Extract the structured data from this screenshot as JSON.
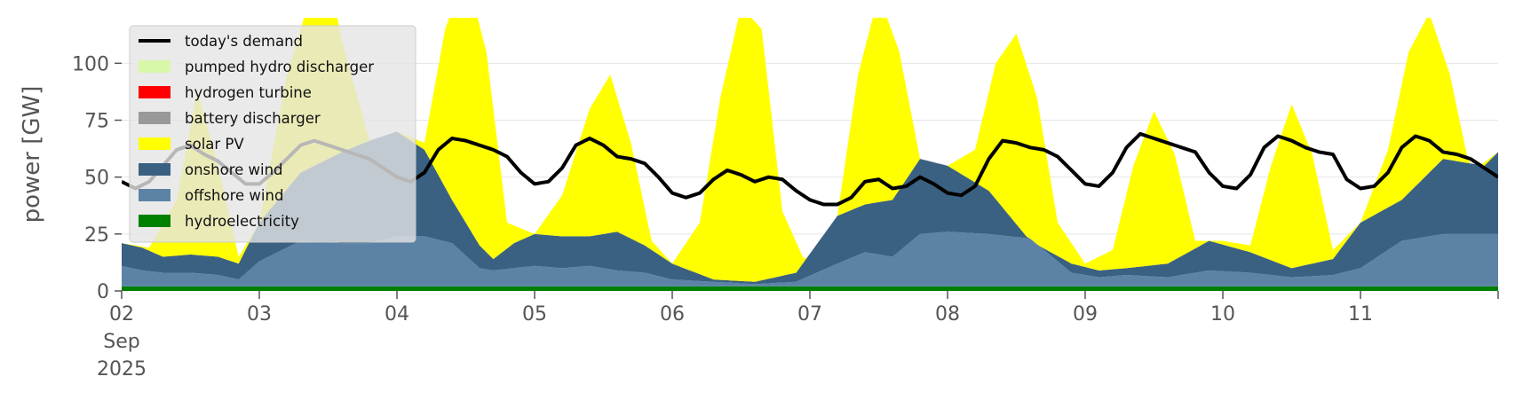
{
  "chart_data": {
    "type": "area",
    "stacked": true,
    "ylabel": "power [GW]",
    "ylim": [
      0,
      120
    ],
    "y_ticks": [
      0,
      25,
      50,
      75,
      100
    ],
    "x_range_days": [
      "2025-09-02",
      "2025-09-12"
    ],
    "x_tick_labels": [
      {
        "day": 2,
        "lines": [
          "02",
          "Sep",
          "2025"
        ]
      },
      {
        "day": 3,
        "lines": [
          "03"
        ]
      },
      {
        "day": 4,
        "lines": [
          "04"
        ]
      },
      {
        "day": 5,
        "lines": [
          "05"
        ]
      },
      {
        "day": 6,
        "lines": [
          "06"
        ]
      },
      {
        "day": 7,
        "lines": [
          "07"
        ]
      },
      {
        "day": 8,
        "lines": [
          "08"
        ]
      },
      {
        "day": 9,
        "lines": [
          "09"
        ]
      },
      {
        "day": 10,
        "lines": [
          "10"
        ]
      },
      {
        "day": 11,
        "lines": [
          "11"
        ]
      }
    ],
    "grid": true,
    "legend_position": "top-left",
    "legend": [
      {
        "label": "today's demand",
        "color": "#000000",
        "kind": "line"
      },
      {
        "label": "pumped hydro discharger",
        "color": "#d9f7a8",
        "kind": "area"
      },
      {
        "label": "hydrogen turbine",
        "color": "#ff0000",
        "kind": "area"
      },
      {
        "label": "battery discharger",
        "color": "#999999",
        "kind": "area"
      },
      {
        "label": "solar PV",
        "color": "#ffff00",
        "kind": "area"
      },
      {
        "label": "onshore wind",
        "color": "#3b6182",
        "kind": "area"
      },
      {
        "label": "offshore wind",
        "color": "#5c83a6",
        "kind": "area"
      },
      {
        "label": "hydroelectricity",
        "color": "#008000",
        "kind": "area"
      }
    ],
    "stack_order_bottom_to_top": [
      "hydroelectricity",
      "offshore wind",
      "onshore wind",
      "solar PV",
      "battery discharger",
      "hydrogen turbine",
      "pumped hydro discharger"
    ],
    "series": [
      {
        "name": "hydroelectricity",
        "x": [
          2,
          12
        ],
        "values": [
          2,
          2
        ]
      },
      {
        "name": "offshore wind",
        "x": [
          2.0,
          2.15,
          2.3,
          2.5,
          2.7,
          2.85,
          3.0,
          3.3,
          3.6,
          3.8,
          4.0,
          4.2,
          4.4,
          4.6,
          4.7,
          4.85,
          5.0,
          5.2,
          5.4,
          5.6,
          5.8,
          6.0,
          6.3,
          6.6,
          6.9,
          7.2,
          7.4,
          7.6,
          7.8,
          8.0,
          8.3,
          8.6,
          8.9,
          9.1,
          9.3,
          9.6,
          9.9,
          10.2,
          10.5,
          10.8,
          11.0,
          11.3,
          11.6,
          11.9,
          12.0
        ],
        "values": [
          11,
          9,
          8,
          8,
          7,
          5,
          13,
          22,
          21,
          21,
          24,
          24,
          21,
          10,
          9,
          10,
          11,
          10,
          11,
          9,
          8,
          5,
          4,
          3,
          4,
          12,
          17,
          15,
          25,
          26,
          25,
          23,
          8,
          6,
          7,
          6,
          9,
          8,
          6,
          7,
          10,
          22,
          25,
          25,
          25
        ]
      },
      {
        "name": "onshore wind",
        "x": [
          2.0,
          2.15,
          2.3,
          2.5,
          2.7,
          2.85,
          3.0,
          3.3,
          3.6,
          3.8,
          4.0,
          4.2,
          4.4,
          4.6,
          4.7,
          4.85,
          5.0,
          5.2,
          5.4,
          5.6,
          5.8,
          6.0,
          6.3,
          6.6,
          6.9,
          7.2,
          7.4,
          7.6,
          7.8,
          8.0,
          8.3,
          8.6,
          8.9,
          9.1,
          9.3,
          9.6,
          9.9,
          10.2,
          10.5,
          10.8,
          11.0,
          11.3,
          11.6,
          11.9,
          12.0
        ],
        "values": [
          21,
          19,
          15,
          16,
          15,
          12,
          30,
          52,
          61,
          66,
          70,
          62,
          40,
          20,
          14,
          21,
          25,
          24,
          24,
          26,
          20,
          12,
          5,
          4,
          8,
          33,
          38,
          40,
          58,
          55,
          44,
          22,
          12,
          9,
          10,
          12,
          22,
          17,
          10,
          14,
          30,
          40,
          58,
          55,
          61
        ]
      },
      {
        "name": "solar PV",
        "x": [
          2.0,
          2.2,
          2.4,
          2.55,
          2.7,
          2.85,
          3.0,
          3.2,
          3.4,
          3.5,
          3.6,
          3.8,
          4.0,
          4.2,
          4.35,
          4.5,
          4.65,
          4.8,
          5.0,
          5.2,
          5.4,
          5.55,
          5.7,
          5.85,
          6.0,
          6.2,
          6.35,
          6.5,
          6.65,
          6.8,
          7.0,
          7.2,
          7.35,
          7.5,
          7.65,
          7.8,
          8.0,
          8.2,
          8.35,
          8.5,
          8.65,
          8.8,
          9.0,
          9.2,
          9.35,
          9.5,
          9.65,
          9.8,
          10.0,
          10.2,
          10.35,
          10.5,
          10.65,
          10.8,
          11.0,
          11.2,
          11.35,
          11.5,
          11.65,
          11.8,
          12.0
        ],
        "values": [
          21,
          19,
          40,
          88,
          55,
          15,
          30,
          95,
          135,
          140,
          110,
          66,
          70,
          65,
          115,
          140,
          105,
          30,
          25,
          42,
          80,
          95,
          65,
          22,
          12,
          30,
          85,
          125,
          115,
          35,
          8,
          33,
          95,
          130,
          105,
          58,
          55,
          62,
          100,
          113,
          85,
          30,
          12,
          18,
          55,
          79,
          60,
          22,
          22,
          20,
          55,
          82,
          60,
          18,
          30,
          62,
          105,
          122,
          95,
          52,
          61
        ]
      },
      {
        "name": "battery discharger",
        "x": [
          2.0,
          12.0
        ],
        "values": [
          0,
          0
        ]
      },
      {
        "name": "hydrogen turbine",
        "x": [
          2.0,
          12.0
        ],
        "values": [
          0,
          0
        ]
      },
      {
        "name": "pumped hydro discharger",
        "x": [
          2.0,
          12.0
        ],
        "values": [
          0,
          0
        ]
      },
      {
        "name": "today's demand",
        "x": [
          2.0,
          2.1,
          2.2,
          2.3,
          2.4,
          2.5,
          2.6,
          2.7,
          2.8,
          2.9,
          3.0,
          3.1,
          3.2,
          3.3,
          3.4,
          3.5,
          3.6,
          3.7,
          3.8,
          3.9,
          4.0,
          4.1,
          4.2,
          4.3,
          4.4,
          4.5,
          4.6,
          4.7,
          4.8,
          4.9,
          5.0,
          5.1,
          5.2,
          5.3,
          5.4,
          5.5,
          5.6,
          5.7,
          5.8,
          5.9,
          6.0,
          6.1,
          6.2,
          6.3,
          6.4,
          6.5,
          6.6,
          6.7,
          6.8,
          6.9,
          7.0,
          7.1,
          7.2,
          7.3,
          7.4,
          7.5,
          7.6,
          7.7,
          7.8,
          7.9,
          8.0,
          8.1,
          8.2,
          8.3,
          8.4,
          8.5,
          8.6,
          8.7,
          8.8,
          8.9,
          9.0,
          9.1,
          9.2,
          9.3,
          9.4,
          9.5,
          9.6,
          9.7,
          9.8,
          9.9,
          10.0,
          10.1,
          10.2,
          10.3,
          10.4,
          10.5,
          10.6,
          10.7,
          10.8,
          10.9,
          11.0,
          11.1,
          11.2,
          11.3,
          11.4,
          11.5,
          11.6,
          11.7,
          11.8,
          11.9,
          12.0
        ],
        "values": [
          48,
          45,
          48,
          55,
          62,
          64,
          60,
          57,
          52,
          47,
          47,
          52,
          58,
          64,
          66,
          64,
          62,
          60,
          58,
          54,
          50,
          48,
          52,
          62,
          67,
          66,
          64,
          62,
          59,
          52,
          47,
          48,
          54,
          64,
          67,
          64,
          59,
          58,
          56,
          50,
          43,
          41,
          43,
          49,
          53,
          51,
          48,
          50,
          49,
          44,
          40,
          38,
          38,
          41,
          48,
          49,
          45,
          46,
          50,
          47,
          43,
          42,
          46,
          58,
          66,
          65,
          63,
          62,
          59,
          53,
          47,
          46,
          52,
          63,
          69,
          67,
          65,
          63,
          61,
          52,
          46,
          45,
          51,
          63,
          68,
          66,
          63,
          61,
          60,
          49,
          45,
          46,
          52,
          63,
          68,
          66,
          61,
          60,
          58,
          54,
          50
        ]
      }
    ]
  }
}
